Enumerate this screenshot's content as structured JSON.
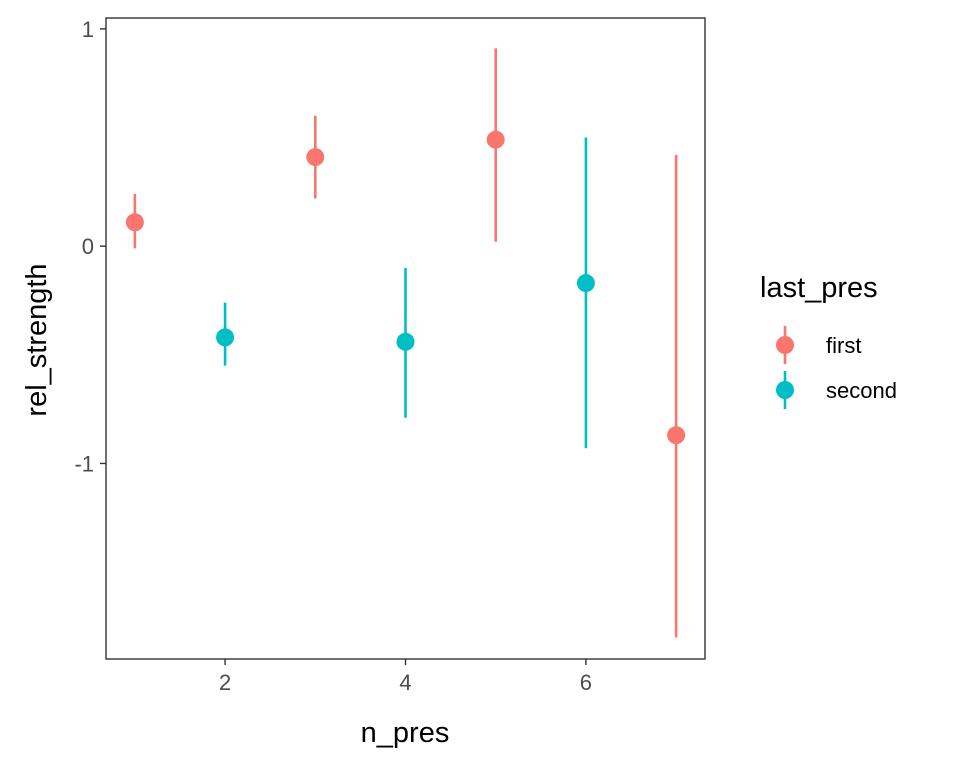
{
  "chart_data": {
    "type": "scatter",
    "subtype": "pointrange",
    "xlabel": "n_pres",
    "ylabel": "rel_strength",
    "xlim": [
      0.68,
      7.32
    ],
    "ylim": [
      -1.9,
      1.05
    ],
    "xticks": [
      2,
      4,
      6
    ],
    "yticks": [
      -1,
      0,
      1
    ],
    "grid": false,
    "legend": {
      "title": "last_pres",
      "placement": "right"
    },
    "series": [
      {
        "name": "first",
        "color": "#F8766D",
        "points": [
          {
            "x": 1,
            "y": 0.11,
            "ymin": -0.01,
            "ymax": 0.24
          },
          {
            "x": 3,
            "y": 0.41,
            "ymin": 0.22,
            "ymax": 0.6
          },
          {
            "x": 5,
            "y": 0.49,
            "ymin": 0.02,
            "ymax": 0.91
          },
          {
            "x": 7,
            "y": -0.87,
            "ymin": -1.8,
            "ymax": 0.42
          }
        ]
      },
      {
        "name": "second",
        "color": "#00BFC4",
        "points": [
          {
            "x": 2,
            "y": -0.42,
            "ymin": -0.55,
            "ymax": -0.26
          },
          {
            "x": 4,
            "y": -0.44,
            "ymin": -0.79,
            "ymax": -0.1
          },
          {
            "x": 6,
            "y": -0.17,
            "ymin": -0.93,
            "ymax": 0.5
          }
        ]
      }
    ]
  }
}
